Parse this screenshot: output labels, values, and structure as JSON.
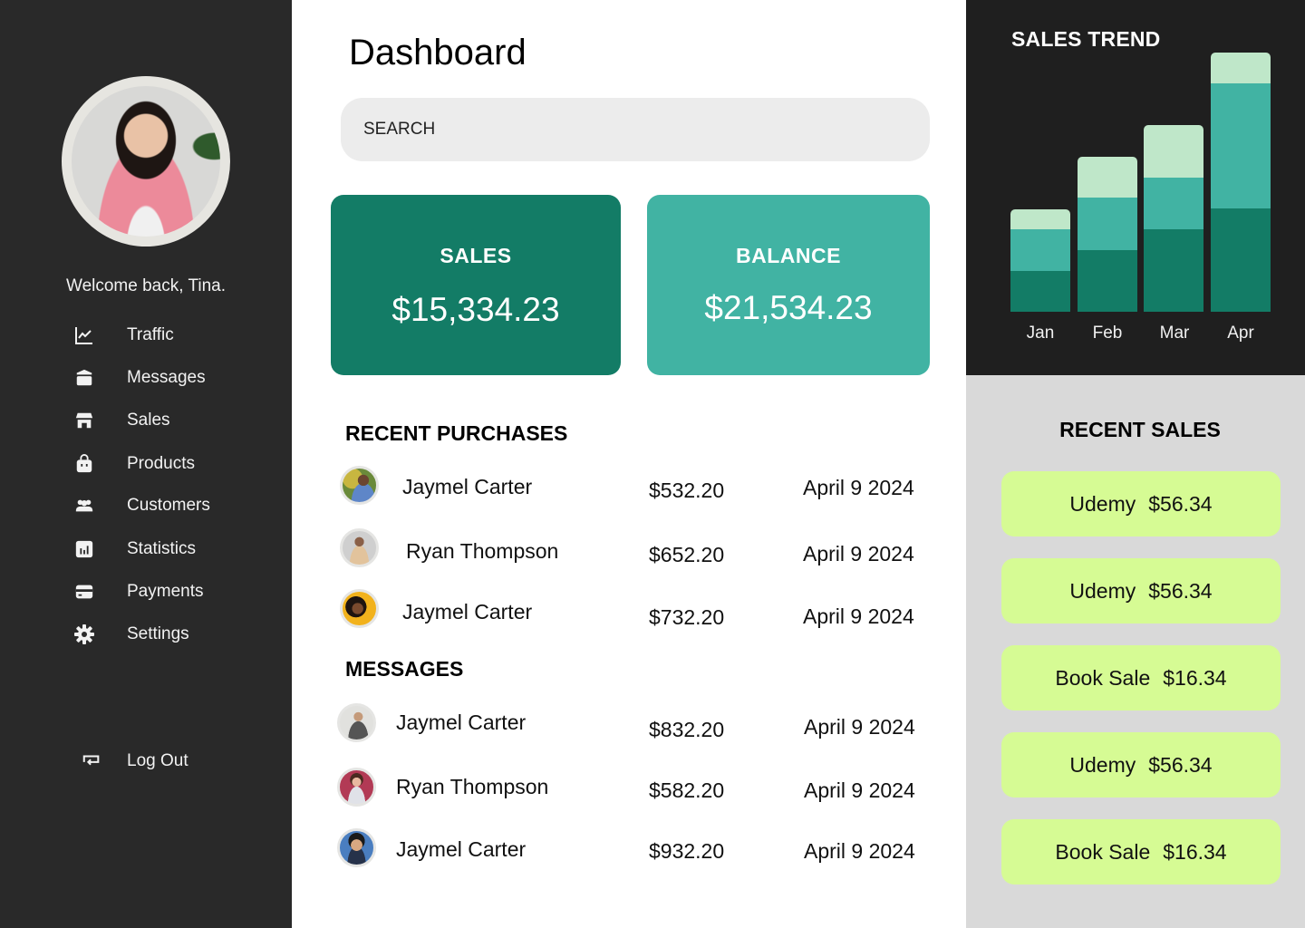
{
  "sidebar": {
    "welcome": "Welcome back, Tina.",
    "items": [
      {
        "label": "Traffic",
        "icon": "line-chart-icon"
      },
      {
        "label": "Messages",
        "icon": "inbox-icon"
      },
      {
        "label": "Sales",
        "icon": "store-icon"
      },
      {
        "label": "Products",
        "icon": "shopping-bag-icon"
      },
      {
        "label": "Customers",
        "icon": "users-icon"
      },
      {
        "label": "Statistics",
        "icon": "bar-chart-icon"
      },
      {
        "label": "Payments",
        "icon": "credit-card-icon"
      },
      {
        "label": "Settings",
        "icon": "gear-icon"
      }
    ],
    "logout": {
      "label": "Log Out",
      "icon": "logout-icon"
    }
  },
  "main": {
    "title": "Dashboard",
    "search": {
      "placeholder": "SEARCH",
      "value": ""
    },
    "cards": {
      "sales": {
        "label": "SALES",
        "value": "$15,334.23",
        "color": "#137c66"
      },
      "balance": {
        "label": "BALANCE",
        "value": "$21,534.23",
        "color": "#41b3a3"
      }
    },
    "recent_purchases": {
      "title": "RECENT PURCHASES",
      "rows": [
        {
          "name": "Jaymel Carter",
          "amount": "$532.20",
          "date": "April 9 2024"
        },
        {
          "name": "Ryan Thompson",
          "amount": "$652.20",
          "date": "April 9 2024"
        },
        {
          "name": "Jaymel Carter",
          "amount": "$732.20",
          "date": "April 9 2024"
        }
      ]
    },
    "messages": {
      "title": "MESSAGES",
      "rows": [
        {
          "name": "Jaymel Carter",
          "amount": "$832.20",
          "date": "April 9 2024"
        },
        {
          "name": "Ryan Thompson",
          "amount": "$582.20",
          "date": "April 9 2024"
        },
        {
          "name": "Jaymel Carter",
          "amount": "$932.20",
          "date": "April 9 2024"
        }
      ]
    }
  },
  "sales_trend": {
    "title": "SALES TREND"
  },
  "recent_sales": {
    "title": "RECENT SALES",
    "items": [
      {
        "name": "Udemy",
        "amount": "$56.34"
      },
      {
        "name": "Udemy",
        "amount": "$56.34"
      },
      {
        "name": "Book Sale",
        "amount": "$16.34"
      },
      {
        "name": "Udemy",
        "amount": "$56.34"
      },
      {
        "name": "Book Sale",
        "amount": "$16.34"
      }
    ],
    "pill_color": "#d6fb94"
  },
  "colors": {
    "sidebar_bg": "#292929",
    "dark_green": "#137c66",
    "teal": "#41b3a3",
    "light_mint": "#bfe7c9",
    "lime": "#d6fb94"
  },
  "chart_data": {
    "type": "bar",
    "stacked": true,
    "title": "SALES TREND",
    "categories": [
      "Jan",
      "Feb",
      "Mar",
      "Apr"
    ],
    "series": [
      {
        "name": "bottom (dark green)",
        "color": "#137c66",
        "values": [
          45,
          68,
          91,
          114
        ]
      },
      {
        "name": "middle (teal)",
        "color": "#41b3a3",
        "values": [
          46,
          58,
          57,
          138
        ]
      },
      {
        "name": "top (light mint)",
        "color": "#bfe7c9",
        "values": [
          22,
          45,
          58,
          34
        ]
      }
    ],
    "xlabel": "",
    "ylabel": "",
    "grid": false,
    "legend": "none",
    "note": "No y-axis; values are relative segment heights in pixels"
  }
}
